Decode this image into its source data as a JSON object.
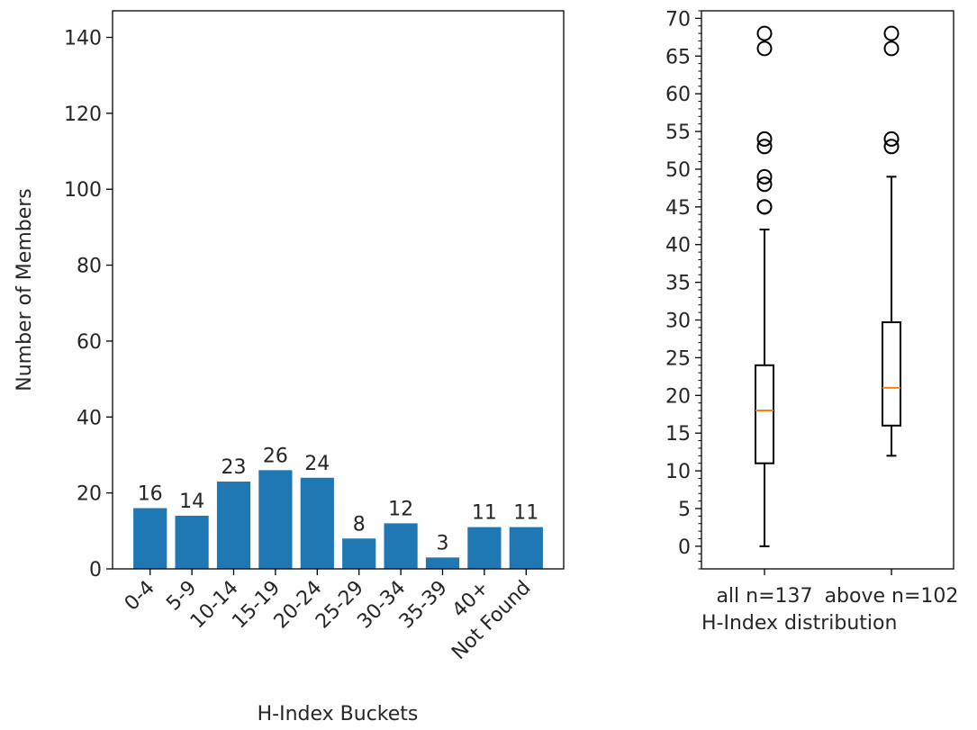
{
  "chart_data": [
    {
      "type": "bar",
      "xlabel": "H-Index Buckets",
      "ylabel": "Number of Members",
      "ylim": [
        0,
        147
      ],
      "yticks": [
        0,
        20,
        40,
        60,
        80,
        100,
        120,
        140
      ],
      "categories": [
        "0-4",
        "5-9",
        "10-14",
        "15-19",
        "20-24",
        "25-29",
        "30-34",
        "35-39",
        "40+",
        "Not Found"
      ],
      "values": [
        16,
        14,
        23,
        26,
        24,
        8,
        12,
        3,
        11,
        11
      ],
      "data_labels": [
        "16",
        "14",
        "23",
        "26",
        "24",
        "8",
        "12",
        "3",
        "11",
        "11"
      ],
      "bar_color": "#1f77b4",
      "grid": false
    },
    {
      "type": "box",
      "xlabel": "H-Index distribution",
      "ylim": [
        -3,
        71
      ],
      "yticks": [
        0,
        5,
        10,
        15,
        20,
        25,
        30,
        35,
        40,
        45,
        50,
        55,
        60,
        65,
        70
      ],
      "categories": [
        "all n=137",
        "above n=102"
      ],
      "boxes": [
        {
          "whisker_low": 0,
          "q1": 11,
          "median": 18,
          "q3": 24,
          "whisker_high": 42,
          "outliers": [
            45,
            45,
            48,
            49,
            53,
            54,
            66,
            68
          ]
        },
        {
          "whisker_low": 12,
          "q1": 16,
          "median": 21,
          "q3": 29.7,
          "whisker_high": 49,
          "outliers": [
            53,
            54,
            66,
            68
          ]
        }
      ],
      "median_color": "#ff7f0e",
      "grid": false
    }
  ]
}
